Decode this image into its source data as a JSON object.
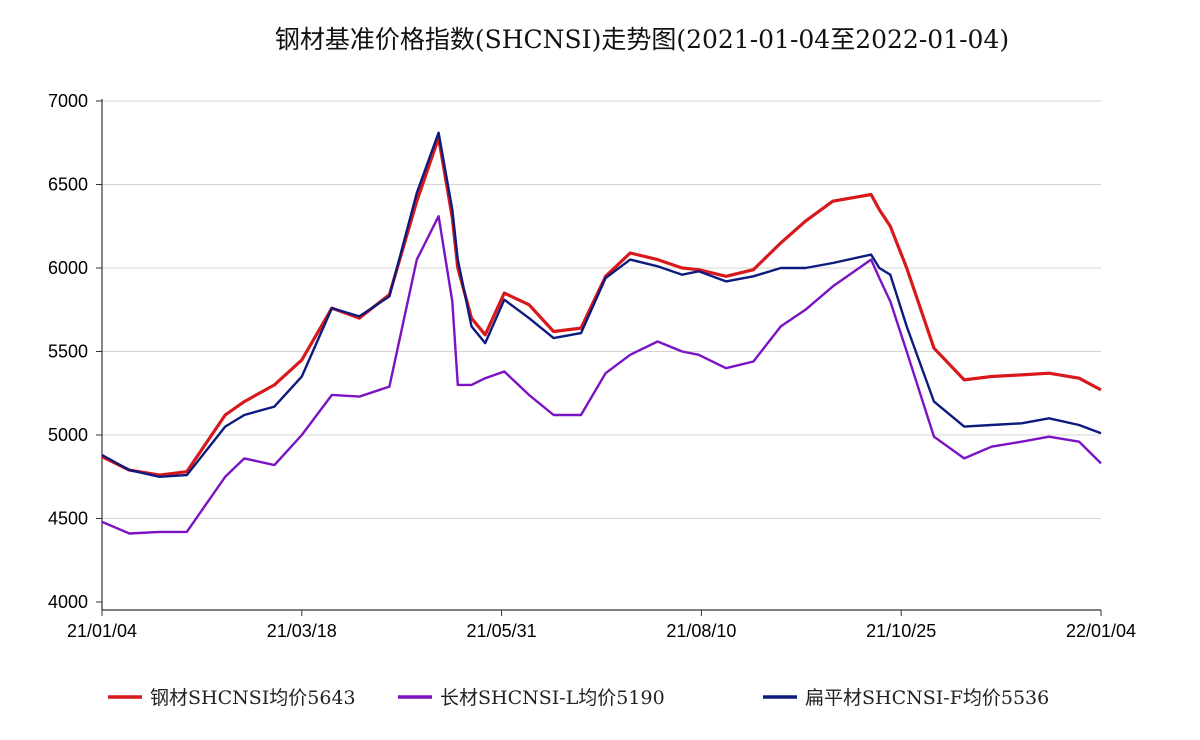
{
  "chart_data": {
    "type": "line",
    "title": "钢材基准价格指数(SHCNSI)走势图(2021-01-04至2022-01-04)",
    "xlabel": "",
    "ylabel": "",
    "ylim": [
      4000,
      7000
    ],
    "yticks": [
      4000,
      4500,
      5000,
      5500,
      6000,
      6500,
      7000
    ],
    "xlim": [
      "2021-01-04",
      "2022-01-04"
    ],
    "xticks": [
      "21/01/04",
      "21/03/18",
      "21/05/31",
      "21/08/10",
      "21/10/25",
      "22/01/04"
    ],
    "grid": true,
    "legend_position": "bottom",
    "colors": {
      "gangcai": "#d7191c",
      "changcai": "#7b12c4",
      "bianpingcai": "#0d1a7e"
    },
    "x": [
      "2021-01-04",
      "2021-01-14",
      "2021-01-25",
      "2021-02-04",
      "2021-02-18",
      "2021-02-25",
      "2021-03-08",
      "2021-03-18",
      "2021-03-29",
      "2021-04-08",
      "2021-04-19",
      "2021-04-29",
      "2021-05-07",
      "2021-05-12",
      "2021-05-14",
      "2021-05-19",
      "2021-05-24",
      "2021-05-31",
      "2021-06-09",
      "2021-06-18",
      "2021-06-28",
      "2021-07-07",
      "2021-07-16",
      "2021-07-26",
      "2021-08-04",
      "2021-08-10",
      "2021-08-20",
      "2021-08-30",
      "2021-09-09",
      "2021-09-18",
      "2021-09-28",
      "2021-10-12",
      "2021-10-15",
      "2021-10-19",
      "2021-10-25",
      "2021-11-04",
      "2021-11-15",
      "2021-11-25",
      "2021-12-06",
      "2021-12-16",
      "2021-12-27",
      "2022-01-04"
    ],
    "series": [
      {
        "name": "钢材SHCNSI均价5643",
        "key": "gangcai",
        "values": [
          4870,
          4790,
          4760,
          4780,
          5120,
          5200,
          5300,
          5450,
          5760,
          5700,
          5840,
          6400,
          6780,
          6300,
          6000,
          5700,
          5600,
          5850,
          5780,
          5620,
          5640,
          5950,
          6090,
          6050,
          6000,
          5990,
          5950,
          5990,
          6150,
          6280,
          6400,
          6440,
          6350,
          6250,
          6000,
          5520,
          5330,
          5350,
          5360,
          5370,
          5340,
          5270
        ]
      },
      {
        "name": "长材SHCNSI-L均价5190",
        "key": "changcai",
        "values": [
          4480,
          4410,
          4420,
          4420,
          4750,
          4860,
          4820,
          5000,
          5240,
          5230,
          5290,
          6050,
          6310,
          5800,
          5300,
          5300,
          5340,
          5380,
          5240,
          5120,
          5120,
          5370,
          5480,
          5560,
          5500,
          5480,
          5400,
          5440,
          5650,
          5750,
          5890,
          6050,
          5940,
          5800,
          5500,
          4990,
          4860,
          4930,
          4960,
          4990,
          4960,
          4830
        ]
      },
      {
        "name": "扁平材SHCNSI-F均价5536",
        "key": "bianpingcai",
        "values": [
          4880,
          4790,
          4750,
          4760,
          5050,
          5120,
          5170,
          5350,
          5760,
          5710,
          5830,
          6450,
          6810,
          6350,
          6050,
          5650,
          5550,
          5810,
          5700,
          5580,
          5610,
          5940,
          6050,
          6010,
          5960,
          5980,
          5920,
          5950,
          6000,
          6000,
          6030,
          6080,
          6000,
          5960,
          5650,
          5200,
          5050,
          5060,
          5070,
          5100,
          5060,
          5010
        ]
      }
    ]
  }
}
